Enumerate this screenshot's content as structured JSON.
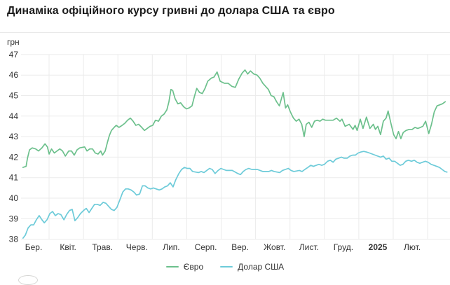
{
  "header": {
    "title": "Динаміка офіційного курсу гривні до долара США та євро"
  },
  "chart_data": {
    "type": "line",
    "title": "Динаміка офіційного курсу гривні до долара США та євро",
    "xlabel": "",
    "ylabel": "грн",
    "ylim": [
      38,
      47
    ],
    "grid": true,
    "legend_position": "bottom",
    "y_ticks": [
      47,
      46,
      45,
      44,
      43,
      42,
      41,
      40,
      39,
      38
    ],
    "x_ticks": [
      {
        "label": "Бер.",
        "bold": false
      },
      {
        "label": "Квіт.",
        "bold": false
      },
      {
        "label": "Трав.",
        "bold": false
      },
      {
        "label": "Черв.",
        "bold": false
      },
      {
        "label": "Лип.",
        "bold": false
      },
      {
        "label": "Серп.",
        "bold": false
      },
      {
        "label": "Вер.",
        "bold": false
      },
      {
        "label": "Жовт.",
        "bold": false
      },
      {
        "label": "Лист.",
        "bold": false
      },
      {
        "label": "Груд.",
        "bold": false
      },
      {
        "label": "2025",
        "bold": true
      },
      {
        "label": "Лют.",
        "bold": false
      }
    ],
    "x_unit": "months_from_march_tick",
    "series": [
      {
        "id": "euro",
        "name": "Євро",
        "color": "#6cc08c",
        "points": [
          [
            -0.31,
            41.5
          ],
          [
            -0.22,
            41.55
          ],
          [
            -0.18,
            41.95
          ],
          [
            -0.12,
            42.35
          ],
          [
            -0.04,
            42.45
          ],
          [
            0.06,
            42.4
          ],
          [
            0.14,
            42.3
          ],
          [
            0.24,
            42.45
          ],
          [
            0.33,
            42.65
          ],
          [
            0.4,
            42.5
          ],
          [
            0.45,
            42.15
          ],
          [
            0.52,
            42.4
          ],
          [
            0.6,
            42.2
          ],
          [
            0.68,
            42.3
          ],
          [
            0.76,
            42.4
          ],
          [
            0.84,
            42.3
          ],
          [
            0.92,
            42.05
          ],
          [
            1.02,
            42.3
          ],
          [
            1.1,
            42.3
          ],
          [
            1.18,
            42.1
          ],
          [
            1.26,
            42.35
          ],
          [
            1.34,
            42.45
          ],
          [
            1.48,
            42.5
          ],
          [
            1.55,
            42.3
          ],
          [
            1.63,
            42.4
          ],
          [
            1.71,
            42.4
          ],
          [
            1.79,
            42.2
          ],
          [
            1.87,
            42.15
          ],
          [
            1.95,
            42.3
          ],
          [
            2.0,
            42.1
          ],
          [
            2.08,
            42.3
          ],
          [
            2.14,
            42.7
          ],
          [
            2.2,
            43.05
          ],
          [
            2.26,
            43.3
          ],
          [
            2.34,
            43.45
          ],
          [
            2.4,
            43.55
          ],
          [
            2.48,
            43.45
          ],
          [
            2.57,
            43.55
          ],
          [
            2.65,
            43.65
          ],
          [
            2.73,
            43.8
          ],
          [
            2.81,
            43.9
          ],
          [
            2.89,
            43.75
          ],
          [
            2.97,
            43.55
          ],
          [
            3.05,
            43.6
          ],
          [
            3.14,
            43.45
          ],
          [
            3.22,
            43.3
          ],
          [
            3.3,
            43.4
          ],
          [
            3.38,
            43.5
          ],
          [
            3.46,
            43.55
          ],
          [
            3.54,
            43.8
          ],
          [
            3.63,
            43.75
          ],
          [
            3.71,
            44.0
          ],
          [
            3.79,
            44.1
          ],
          [
            3.87,
            44.3
          ],
          [
            3.93,
            44.7
          ],
          [
            3.99,
            45.3
          ],
          [
            4.04,
            45.25
          ],
          [
            4.11,
            44.85
          ],
          [
            4.19,
            44.6
          ],
          [
            4.27,
            44.65
          ],
          [
            4.36,
            44.45
          ],
          [
            4.44,
            44.35
          ],
          [
            4.52,
            44.4
          ],
          [
            4.6,
            44.5
          ],
          [
            4.67,
            44.95
          ],
          [
            4.74,
            45.35
          ],
          [
            4.82,
            45.15
          ],
          [
            4.9,
            45.1
          ],
          [
            4.98,
            45.35
          ],
          [
            5.06,
            45.7
          ],
          [
            5.16,
            45.85
          ],
          [
            5.24,
            45.9
          ],
          [
            5.33,
            46.15
          ],
          [
            5.42,
            45.7
          ],
          [
            5.54,
            45.6
          ],
          [
            5.65,
            45.6
          ],
          [
            5.76,
            45.45
          ],
          [
            5.86,
            45.4
          ],
          [
            5.96,
            45.8
          ],
          [
            6.06,
            46.1
          ],
          [
            6.14,
            46.25
          ],
          [
            6.22,
            46.05
          ],
          [
            6.3,
            46.2
          ],
          [
            6.4,
            46.05
          ],
          [
            6.49,
            46.0
          ],
          [
            6.57,
            45.85
          ],
          [
            6.66,
            45.6
          ],
          [
            6.74,
            45.45
          ],
          [
            6.82,
            45.3
          ],
          [
            6.9,
            45.0
          ],
          [
            6.98,
            44.95
          ],
          [
            7.06,
            44.7
          ],
          [
            7.14,
            44.5
          ],
          [
            7.25,
            45.15
          ],
          [
            7.32,
            44.4
          ],
          [
            7.38,
            44.55
          ],
          [
            7.46,
            44.2
          ],
          [
            7.55,
            43.9
          ],
          [
            7.63,
            43.75
          ],
          [
            7.71,
            43.85
          ],
          [
            7.79,
            43.6
          ],
          [
            7.86,
            43.0
          ],
          [
            7.92,
            43.6
          ],
          [
            8.0,
            43.7
          ],
          [
            8.08,
            43.45
          ],
          [
            8.16,
            43.75
          ],
          [
            8.24,
            43.8
          ],
          [
            8.32,
            43.75
          ],
          [
            8.4,
            43.85
          ],
          [
            8.48,
            43.8
          ],
          [
            8.59,
            43.8
          ],
          [
            8.7,
            43.8
          ],
          [
            8.8,
            43.9
          ],
          [
            8.9,
            43.75
          ],
          [
            8.96,
            43.85
          ],
          [
            9.05,
            43.5
          ],
          [
            9.17,
            43.6
          ],
          [
            9.28,
            43.35
          ],
          [
            9.34,
            43.55
          ],
          [
            9.4,
            43.3
          ],
          [
            9.49,
            43.85
          ],
          [
            9.57,
            43.4
          ],
          [
            9.67,
            43.95
          ],
          [
            9.77,
            43.4
          ],
          [
            9.87,
            43.6
          ],
          [
            9.93,
            43.35
          ],
          [
            10.0,
            43.5
          ],
          [
            10.08,
            43.1
          ],
          [
            10.16,
            43.75
          ],
          [
            10.24,
            43.9
          ],
          [
            10.3,
            44.25
          ],
          [
            10.38,
            43.65
          ],
          [
            10.46,
            43.1
          ],
          [
            10.53,
            42.9
          ],
          [
            10.6,
            43.25
          ],
          [
            10.67,
            42.9
          ],
          [
            10.74,
            43.2
          ],
          [
            10.82,
            43.3
          ],
          [
            10.91,
            43.35
          ],
          [
            11.0,
            43.35
          ],
          [
            11.08,
            43.45
          ],
          [
            11.16,
            43.4
          ],
          [
            11.24,
            43.45
          ],
          [
            11.31,
            43.5
          ],
          [
            11.39,
            43.75
          ],
          [
            11.48,
            43.15
          ],
          [
            11.56,
            43.6
          ],
          [
            11.64,
            44.2
          ],
          [
            11.72,
            44.5
          ],
          [
            11.8,
            44.55
          ],
          [
            11.88,
            44.6
          ],
          [
            11.96,
            44.7
          ]
        ]
      },
      {
        "id": "usd",
        "name": "Долар США",
        "color": "#6dcbd9",
        "points": [
          [
            -0.31,
            38.05
          ],
          [
            -0.24,
            38.2
          ],
          [
            -0.16,
            38.55
          ],
          [
            -0.08,
            38.7
          ],
          [
            0.0,
            38.7
          ],
          [
            0.08,
            38.95
          ],
          [
            0.16,
            39.15
          ],
          [
            0.24,
            38.95
          ],
          [
            0.31,
            38.8
          ],
          [
            0.39,
            38.95
          ],
          [
            0.47,
            39.25
          ],
          [
            0.55,
            39.35
          ],
          [
            0.63,
            39.15
          ],
          [
            0.71,
            39.25
          ],
          [
            0.79,
            39.2
          ],
          [
            0.88,
            38.95
          ],
          [
            0.96,
            39.2
          ],
          [
            1.04,
            39.4
          ],
          [
            1.12,
            39.45
          ],
          [
            1.2,
            38.9
          ],
          [
            1.28,
            39.05
          ],
          [
            1.36,
            39.25
          ],
          [
            1.45,
            39.4
          ],
          [
            1.53,
            39.5
          ],
          [
            1.61,
            39.3
          ],
          [
            1.69,
            39.5
          ],
          [
            1.77,
            39.7
          ],
          [
            1.85,
            39.7
          ],
          [
            1.93,
            39.65
          ],
          [
            2.02,
            39.8
          ],
          [
            2.1,
            39.75
          ],
          [
            2.18,
            39.6
          ],
          [
            2.26,
            39.45
          ],
          [
            2.34,
            39.4
          ],
          [
            2.42,
            39.55
          ],
          [
            2.5,
            39.9
          ],
          [
            2.59,
            40.3
          ],
          [
            2.67,
            40.45
          ],
          [
            2.75,
            40.45
          ],
          [
            2.83,
            40.4
          ],
          [
            2.91,
            40.3
          ],
          [
            2.99,
            40.15
          ],
          [
            3.08,
            40.2
          ],
          [
            3.16,
            40.6
          ],
          [
            3.24,
            40.6
          ],
          [
            3.32,
            40.5
          ],
          [
            3.4,
            40.45
          ],
          [
            3.48,
            40.5
          ],
          [
            3.56,
            40.45
          ],
          [
            3.65,
            40.4
          ],
          [
            3.73,
            40.45
          ],
          [
            3.81,
            40.55
          ],
          [
            3.89,
            40.6
          ],
          [
            3.97,
            40.75
          ],
          [
            4.05,
            40.55
          ],
          [
            4.13,
            40.9
          ],
          [
            4.22,
            41.2
          ],
          [
            4.3,
            41.4
          ],
          [
            4.38,
            41.5
          ],
          [
            4.46,
            41.45
          ],
          [
            4.54,
            41.45
          ],
          [
            4.62,
            41.3
          ],
          [
            4.79,
            41.25
          ],
          [
            4.87,
            41.3
          ],
          [
            4.95,
            41.25
          ],
          [
            5.03,
            41.35
          ],
          [
            5.11,
            41.45
          ],
          [
            5.19,
            41.4
          ],
          [
            5.27,
            41.2
          ],
          [
            5.36,
            41.35
          ],
          [
            5.44,
            41.45
          ],
          [
            5.52,
            41.4
          ],
          [
            5.6,
            41.35
          ],
          [
            5.77,
            41.35
          ],
          [
            5.93,
            41.2
          ],
          [
            6.01,
            41.15
          ],
          [
            6.09,
            41.3
          ],
          [
            6.17,
            41.4
          ],
          [
            6.25,
            41.45
          ],
          [
            6.34,
            41.4
          ],
          [
            6.5,
            41.4
          ],
          [
            6.66,
            41.3
          ],
          [
            6.83,
            41.3
          ],
          [
            6.91,
            41.35
          ],
          [
            6.99,
            41.3
          ],
          [
            7.15,
            41.25
          ],
          [
            7.23,
            41.35
          ],
          [
            7.4,
            41.45
          ],
          [
            7.48,
            41.35
          ],
          [
            7.56,
            41.3
          ],
          [
            7.72,
            41.35
          ],
          [
            7.8,
            41.3
          ],
          [
            7.88,
            41.4
          ],
          [
            7.97,
            41.5
          ],
          [
            8.05,
            41.6
          ],
          [
            8.13,
            41.55
          ],
          [
            8.21,
            41.6
          ],
          [
            8.29,
            41.65
          ],
          [
            8.37,
            41.6
          ],
          [
            8.45,
            41.65
          ],
          [
            8.54,
            41.8
          ],
          [
            8.62,
            41.85
          ],
          [
            8.7,
            41.75
          ],
          [
            8.78,
            41.9
          ],
          [
            8.86,
            41.95
          ],
          [
            8.94,
            42.0
          ],
          [
            9.02,
            41.95
          ],
          [
            9.11,
            41.95
          ],
          [
            9.19,
            42.05
          ],
          [
            9.27,
            42.1
          ],
          [
            9.35,
            42.1
          ],
          [
            9.43,
            42.2
          ],
          [
            9.51,
            42.25
          ],
          [
            9.59,
            42.28
          ],
          [
            9.67,
            42.25
          ],
          [
            9.76,
            42.2
          ],
          [
            9.84,
            42.15
          ],
          [
            9.92,
            42.1
          ],
          [
            10.0,
            42.05
          ],
          [
            10.08,
            42.0
          ],
          [
            10.16,
            42.05
          ],
          [
            10.24,
            41.9
          ],
          [
            10.33,
            41.95
          ],
          [
            10.41,
            41.8
          ],
          [
            10.49,
            41.8
          ],
          [
            10.57,
            41.7
          ],
          [
            10.65,
            41.6
          ],
          [
            10.73,
            41.65
          ],
          [
            10.81,
            41.8
          ],
          [
            10.89,
            41.85
          ],
          [
            10.98,
            41.8
          ],
          [
            11.06,
            41.85
          ],
          [
            11.14,
            41.75
          ],
          [
            11.22,
            41.7
          ],
          [
            11.3,
            41.75
          ],
          [
            11.38,
            41.8
          ],
          [
            11.46,
            41.75
          ],
          [
            11.55,
            41.65
          ],
          [
            11.63,
            41.6
          ],
          [
            11.71,
            41.55
          ],
          [
            11.79,
            41.5
          ],
          [
            11.87,
            41.4
          ],
          [
            11.95,
            41.3
          ],
          [
            12.01,
            41.27
          ]
        ]
      }
    ],
    "colors": {
      "grid": "#ebebeb",
      "axis_text": "#333333",
      "title_text": "#1a1a1a"
    }
  }
}
